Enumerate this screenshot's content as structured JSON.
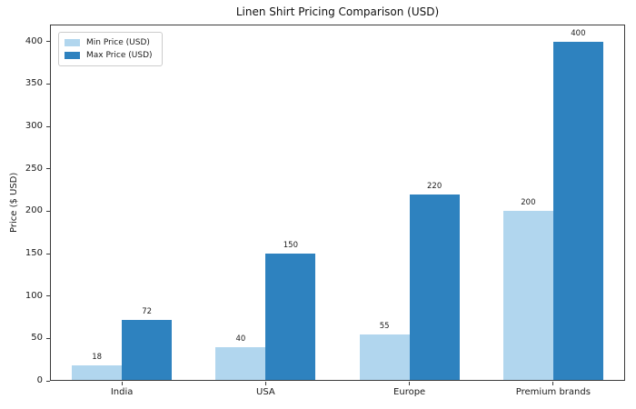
{
  "chart_data": {
    "type": "bar",
    "title": "Linen Shirt Pricing Comparison (USD)",
    "xlabel": "",
    "ylabel": "Price ($ USD)",
    "categories": [
      "India",
      "USA",
      "Europe",
      "Premium brands"
    ],
    "series": [
      {
        "name": "Min Price (USD)",
        "color": "#b1d6ee",
        "values": [
          18,
          40,
          55,
          200
        ]
      },
      {
        "name": "Max Price (USD)",
        "color": "#2e82bf",
        "values": [
          72,
          150,
          220,
          400
        ]
      }
    ],
    "ylim": [
      0,
      420
    ],
    "yticks": [
      0,
      50,
      100,
      150,
      200,
      250,
      300,
      350,
      400
    ],
    "grid": false,
    "legend_position": "upper-left",
    "bar_value_labels": true,
    "spine_color": "#3a3a3a",
    "background_color": "#ffffff"
  }
}
